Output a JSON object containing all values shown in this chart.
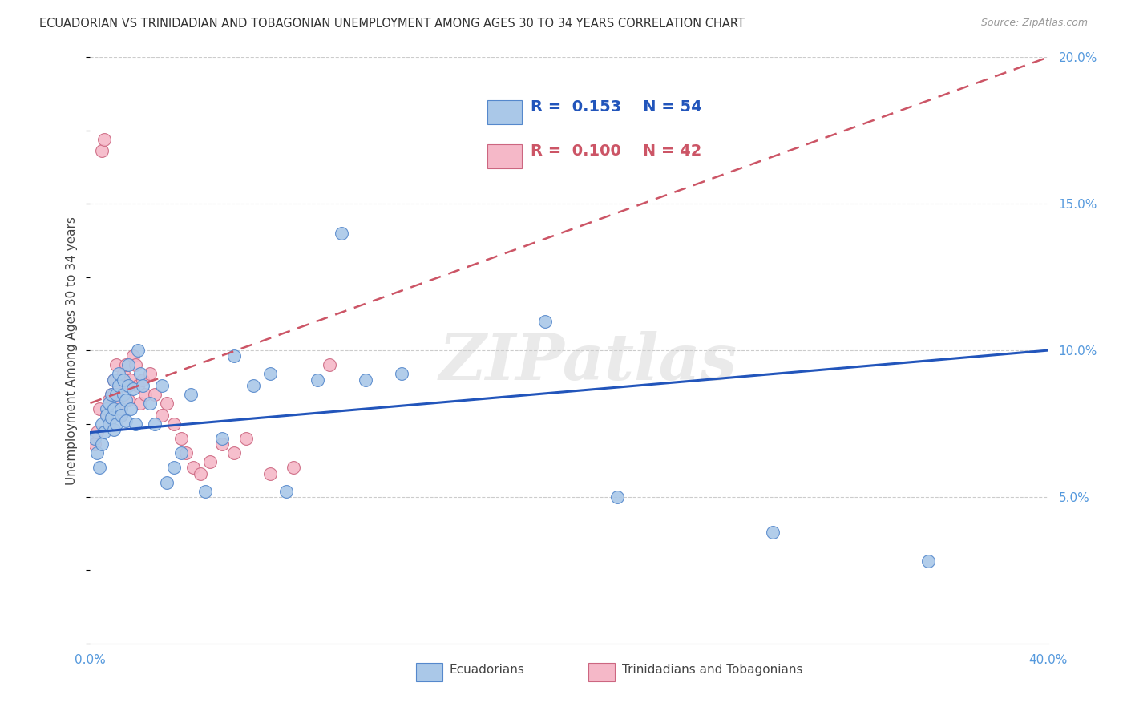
{
  "title": "ECUADORIAN VS TRINIDADIAN AND TOBAGONIAN UNEMPLOYMENT AMONG AGES 30 TO 34 YEARS CORRELATION CHART",
  "source": "Source: ZipAtlas.com",
  "ylabel": "Unemployment Among Ages 30 to 34 years",
  "xlim": [
    0,
    0.4
  ],
  "ylim": [
    0,
    0.2
  ],
  "xticks": [
    0.0,
    0.05,
    0.1,
    0.15,
    0.2,
    0.25,
    0.3,
    0.35,
    0.4
  ],
  "yticks": [
    0.0,
    0.05,
    0.1,
    0.15,
    0.2
  ],
  "legend_blue_r": "0.153",
  "legend_blue_n": "54",
  "legend_pink_r": "0.100",
  "legend_pink_n": "42",
  "blue_scatter_color": "#aac8e8",
  "blue_edge_color": "#5588cc",
  "pink_scatter_color": "#f5b8c8",
  "pink_edge_color": "#cc6680",
  "trendline_blue_color": "#2255bb",
  "trendline_pink_color": "#cc5566",
  "watermark": "ZIPatlas",
  "ecuadorians_x": [
    0.002,
    0.003,
    0.004,
    0.005,
    0.005,
    0.006,
    0.007,
    0.007,
    0.008,
    0.008,
    0.009,
    0.009,
    0.01,
    0.01,
    0.01,
    0.011,
    0.011,
    0.012,
    0.012,
    0.013,
    0.013,
    0.014,
    0.014,
    0.015,
    0.015,
    0.016,
    0.016,
    0.017,
    0.018,
    0.019,
    0.02,
    0.021,
    0.022,
    0.025,
    0.027,
    0.03,
    0.032,
    0.035,
    0.038,
    0.042,
    0.048,
    0.055,
    0.06,
    0.068,
    0.075,
    0.082,
    0.095,
    0.105,
    0.115,
    0.13,
    0.19,
    0.22,
    0.285,
    0.35
  ],
  "ecuadorians_y": [
    0.07,
    0.065,
    0.06,
    0.075,
    0.068,
    0.072,
    0.08,
    0.078,
    0.075,
    0.082,
    0.077,
    0.085,
    0.08,
    0.073,
    0.09,
    0.085,
    0.075,
    0.088,
    0.092,
    0.08,
    0.078,
    0.085,
    0.09,
    0.083,
    0.076,
    0.088,
    0.095,
    0.08,
    0.087,
    0.075,
    0.1,
    0.092,
    0.088,
    0.082,
    0.075,
    0.088,
    0.055,
    0.06,
    0.065,
    0.085,
    0.052,
    0.07,
    0.098,
    0.088,
    0.092,
    0.052,
    0.09,
    0.14,
    0.09,
    0.092,
    0.11,
    0.05,
    0.038,
    0.028
  ],
  "trinidadians_x": [
    0.002,
    0.003,
    0.004,
    0.005,
    0.006,
    0.007,
    0.008,
    0.008,
    0.009,
    0.01,
    0.01,
    0.011,
    0.012,
    0.012,
    0.013,
    0.014,
    0.015,
    0.015,
    0.016,
    0.017,
    0.018,
    0.019,
    0.02,
    0.021,
    0.022,
    0.023,
    0.025,
    0.027,
    0.03,
    0.032,
    0.035,
    0.038,
    0.04,
    0.043,
    0.046,
    0.05,
    0.055,
    0.06,
    0.065,
    0.075,
    0.085,
    0.1
  ],
  "trinidadians_y": [
    0.068,
    0.072,
    0.08,
    0.168,
    0.172,
    0.078,
    0.083,
    0.075,
    0.085,
    0.09,
    0.085,
    0.095,
    0.088,
    0.082,
    0.078,
    0.092,
    0.095,
    0.088,
    0.083,
    0.09,
    0.098,
    0.095,
    0.088,
    0.082,
    0.09,
    0.085,
    0.092,
    0.085,
    0.078,
    0.082,
    0.075,
    0.07,
    0.065,
    0.06,
    0.058,
    0.062,
    0.068,
    0.065,
    0.07,
    0.058,
    0.06,
    0.095
  ],
  "background_color": "#ffffff",
  "grid_color": "#cccccc",
  "trendline_blue_start_y": 0.072,
  "trendline_blue_end_y": 0.1,
  "trendline_pink_start_y": 0.082,
  "trendline_pink_end_y": 0.2
}
